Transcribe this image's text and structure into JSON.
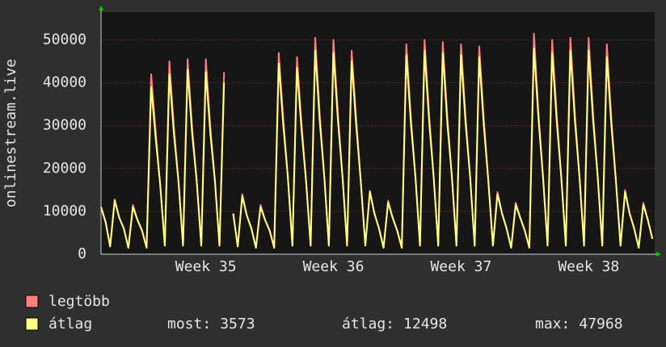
{
  "chart_data": {
    "type": "line",
    "y_axis_label": "onlinestream.live",
    "ylim": [
      0,
      56500
    ],
    "yticks": [
      0,
      10000,
      20000,
      30000,
      40000,
      50000
    ],
    "grid": true,
    "categories": [
      null,
      null,
      null,
      null,
      null,
      null,
      null,
      null,
      null,
      null,
      null,
      null,
      null,
      null,
      null,
      null,
      null,
      null,
      null,
      null,
      null,
      null,
      null,
      "Week 35",
      null,
      null,
      null,
      null,
      null,
      null,
      null,
      null,
      null,
      null,
      null,
      null,
      null,
      null,
      null,
      null,
      null,
      null,
      null,
      null,
      null,
      null,
      null,
      null,
      null,
      null,
      null,
      "Week 36",
      null,
      null,
      null,
      null,
      null,
      null,
      null,
      null,
      null,
      null,
      null,
      null,
      null,
      null,
      null,
      null,
      null,
      null,
      null,
      null,
      null,
      null,
      null,
      null,
      null,
      null,
      null,
      "Week 37",
      null,
      null,
      null,
      null,
      null,
      null,
      null,
      null,
      null,
      null,
      null,
      null,
      null,
      null,
      null,
      null,
      null,
      null,
      null,
      null,
      null,
      null,
      null,
      null,
      null,
      null,
      null,
      "Week 38",
      null,
      null,
      null,
      null,
      null,
      null,
      null,
      null,
      null,
      null,
      null,
      null,
      null,
      null
    ],
    "series": [
      {
        "name": "legtöbb",
        "color": "#ff7f7f",
        "values": [
          11000,
          7500,
          1800,
          12800,
          8500,
          6000,
          1500,
          11500,
          8000,
          5500,
          1500,
          42000,
          28500,
          16000,
          2000,
          45000,
          29500,
          17000,
          2000,
          45500,
          29500,
          17000,
          2000,
          45500,
          29500,
          17000,
          2000,
          42500,
          null,
          9500,
          1800,
          14000,
          9000,
          6000,
          1500,
          11500,
          8000,
          5500,
          1500,
          47000,
          31500,
          18000,
          2000,
          46000,
          30500,
          17000,
          2000,
          50500,
          32500,
          18000,
          2000,
          50000,
          32500,
          18000,
          2000,
          47500,
          31500,
          17000,
          2000,
          14800,
          9500,
          6000,
          1500,
          12500,
          8500,
          5500,
          1500,
          49000,
          32000,
          18000,
          2000,
          50000,
          32500,
          18000,
          2000,
          49500,
          32000,
          18000,
          2000,
          49000,
          32000,
          18000,
          2000,
          48500,
          31500,
          17000,
          2000,
          14500,
          9500,
          6000,
          1500,
          12000,
          8500,
          5500,
          1500,
          51500,
          33000,
          18000,
          2000,
          50000,
          32500,
          18000,
          2000,
          50500,
          32500,
          18000,
          2000,
          50500,
          32500,
          18000,
          2000,
          49000,
          31500,
          17000,
          2000,
          15000,
          9500,
          6000,
          1500,
          12000,
          8000,
          3573
        ]
      },
      {
        "name": "átlag",
        "color": "#ffff80",
        "values": [
          11000,
          7500,
          1800,
          12500,
          8500,
          6000,
          1500,
          11000,
          8000,
          5500,
          1500,
          39000,
          27000,
          16000,
          2000,
          42000,
          28000,
          17000,
          2000,
          43000,
          28000,
          17000,
          2000,
          42500,
          28000,
          17000,
          2000,
          40000,
          null,
          9500,
          1800,
          13500,
          9000,
          6000,
          1500,
          11000,
          8000,
          5500,
          1500,
          44500,
          30000,
          18000,
          2000,
          43500,
          29000,
          17000,
          2000,
          47500,
          31000,
          18000,
          2000,
          47000,
          31000,
          18000,
          2000,
          45000,
          30000,
          17000,
          2000,
          14500,
          9500,
          6000,
          1500,
          12000,
          8500,
          5500,
          1500,
          46500,
          30500,
          18000,
          2000,
          47500,
          31000,
          18000,
          2000,
          47000,
          30500,
          18000,
          2000,
          46500,
          30500,
          18000,
          2000,
          46000,
          30000,
          17000,
          2000,
          14000,
          9500,
          6000,
          1500,
          11500,
          8500,
          5500,
          1500,
          48000,
          31500,
          18000,
          2000,
          47000,
          31000,
          18000,
          2000,
          47500,
          31000,
          18000,
          2000,
          47500,
          31000,
          18000,
          2000,
          46000,
          30000,
          17000,
          2000,
          14500,
          9500,
          6000,
          1500,
          11500,
          8000,
          3573
        ]
      }
    ],
    "stats": [
      {
        "label": "most:",
        "value": 3573
      },
      {
        "label": "átlag:",
        "value": 12498
      },
      {
        "label": "max:",
        "value": 47968
      }
    ]
  }
}
